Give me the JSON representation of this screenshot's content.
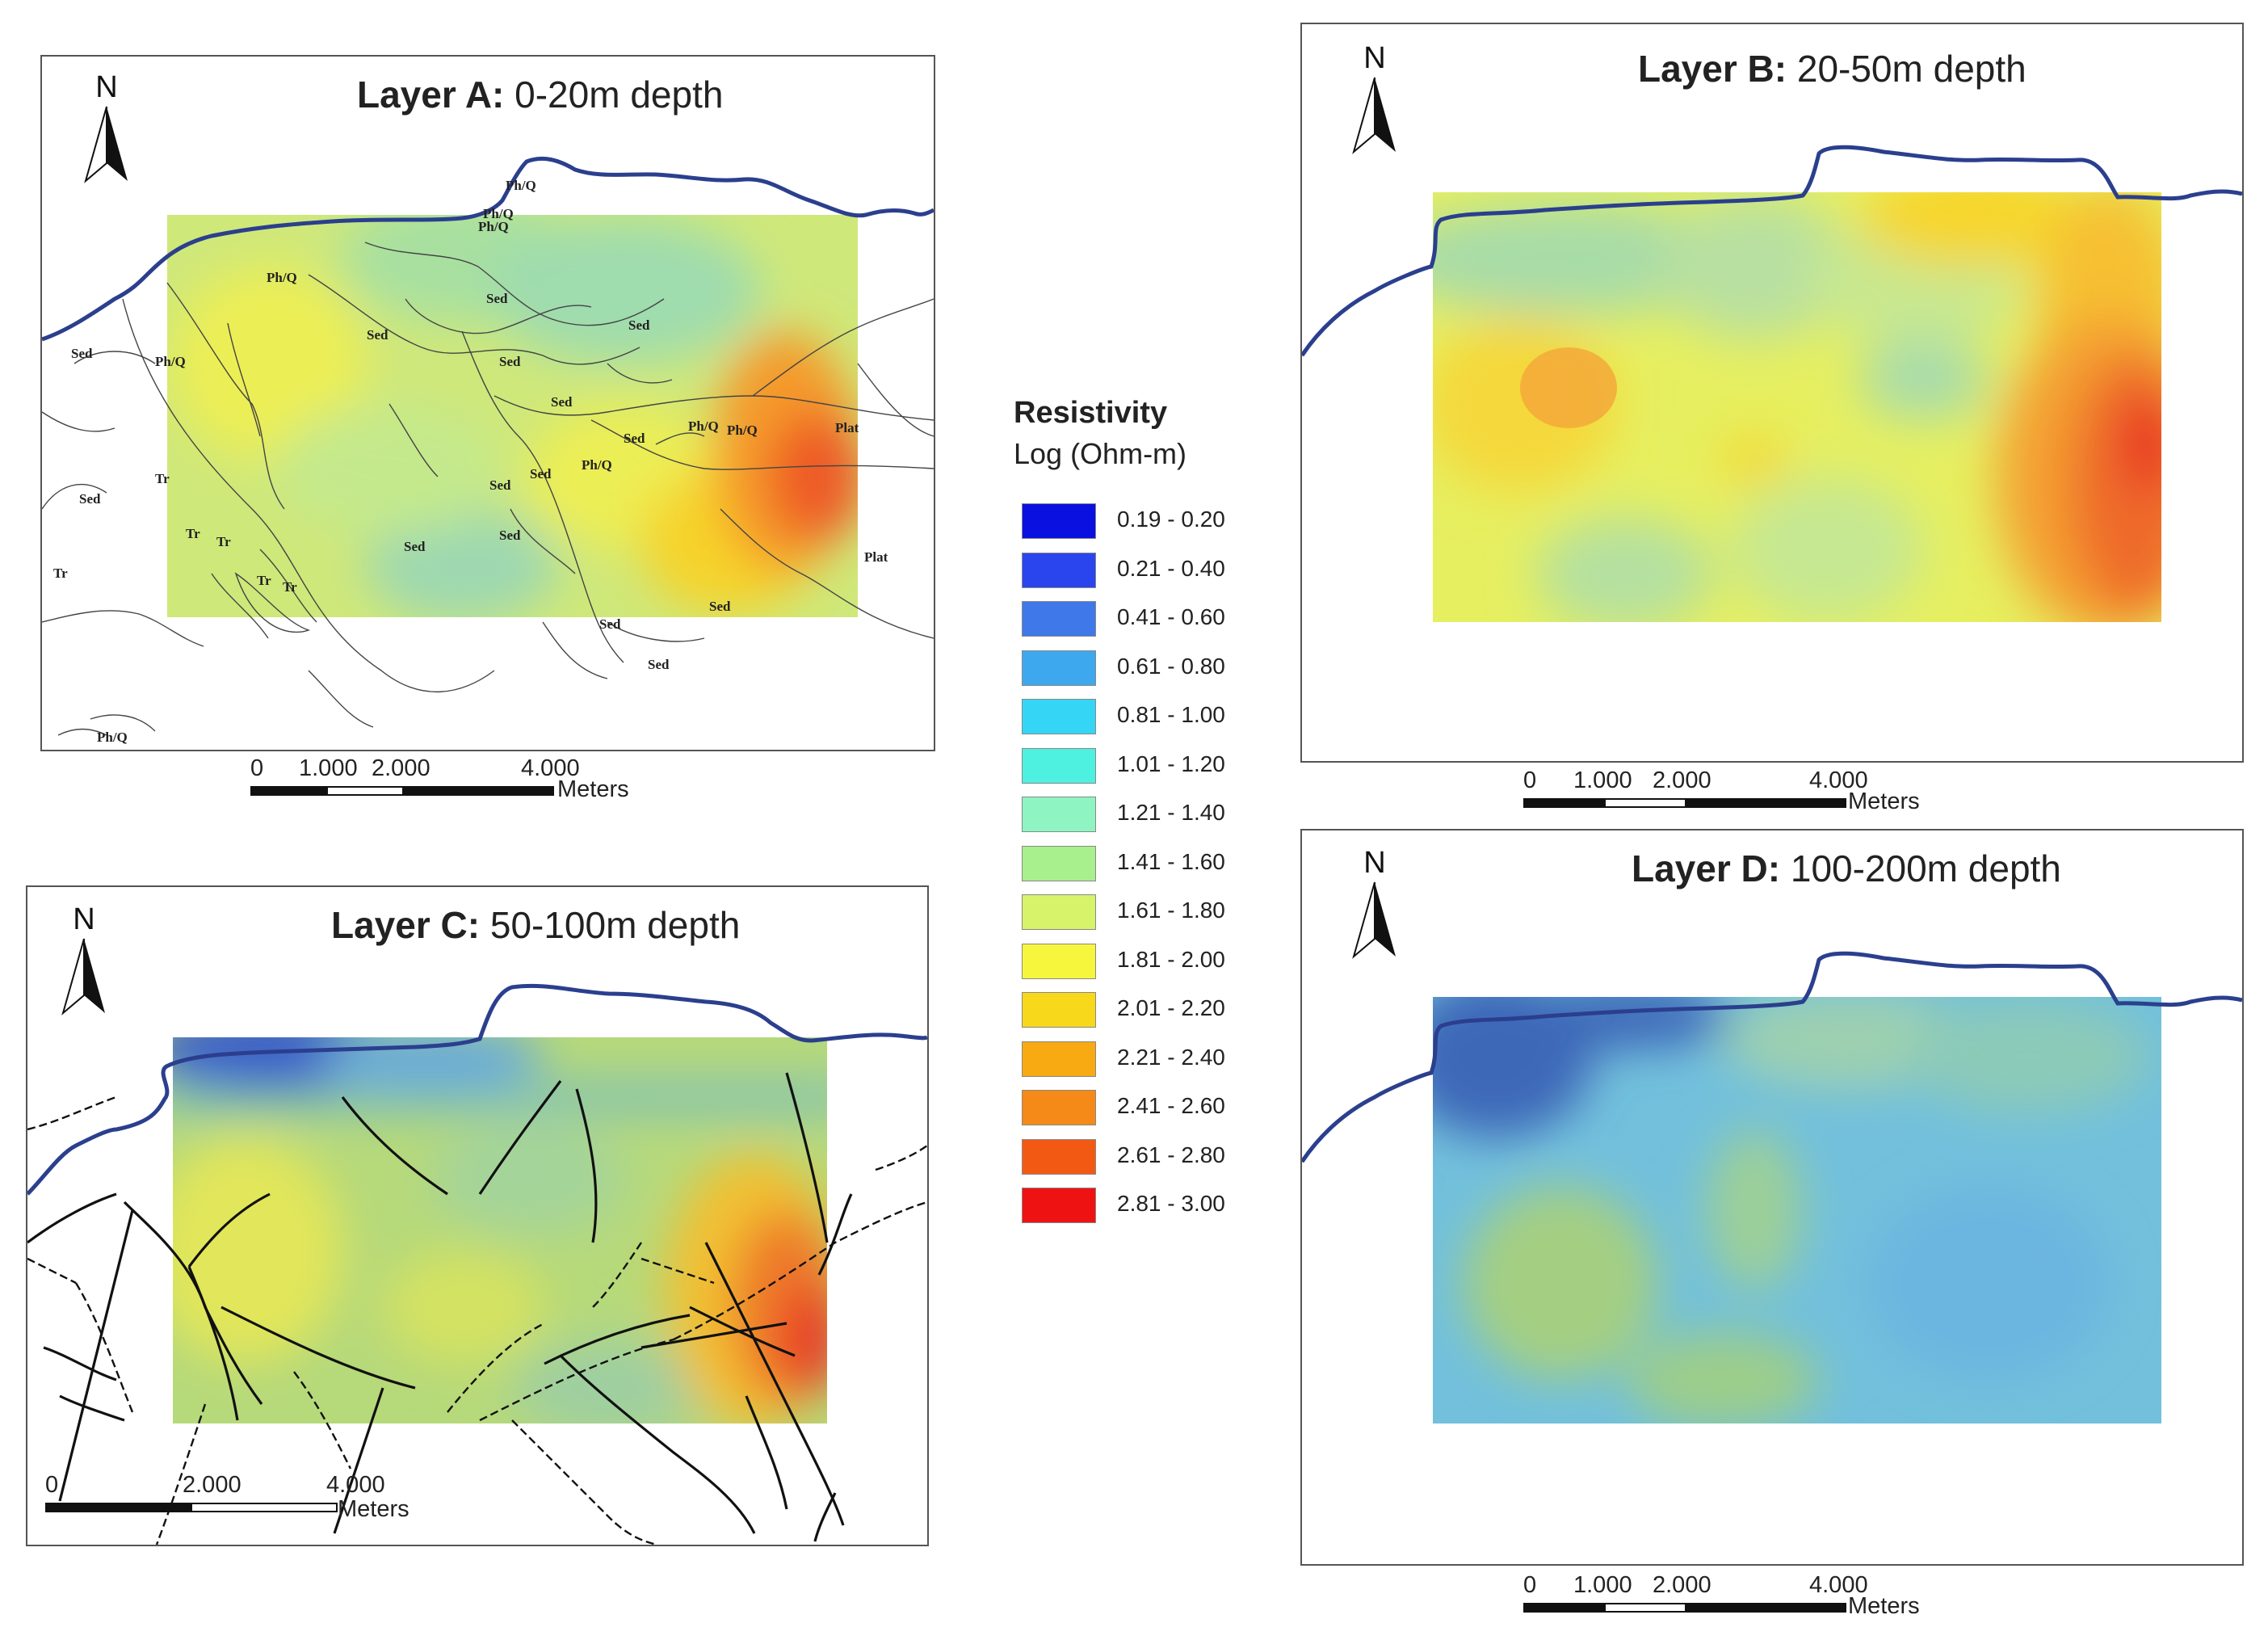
{
  "panels": {
    "a": {
      "title_bold": "Layer A:",
      "title_rest": " 0-20m depth",
      "north": "N",
      "scale": {
        "t0": "0",
        "t1": "1.000",
        "t2": "2.000",
        "t3": "4.000",
        "unit": "Meters"
      }
    },
    "b": {
      "title_bold": "Layer B:",
      "title_rest": " 20-50m depth",
      "north": "N",
      "scale": {
        "t0": "0",
        "t1": "1.000",
        "t2": "2.000",
        "t3": "4.000",
        "unit": "Meters"
      }
    },
    "c": {
      "title_bold": "Layer C:",
      "title_rest": " 50-100m depth",
      "north": "N",
      "scale": {
        "t0": "0",
        "t2": "2.000",
        "t3": "4.000",
        "unit": "Meters"
      }
    },
    "d": {
      "title_bold": "Layer D:",
      "title_rest": " 100-200m depth",
      "north": "N",
      "scale": {
        "t0": "0",
        "t1": "1.000",
        "t2": "2.000",
        "t3": "4.000",
        "unit": "Meters"
      }
    }
  },
  "geology_labels": {
    "phq": "Ph/Q",
    "sed": "Sed",
    "tr": "Tr",
    "plat": "Plat"
  },
  "legend": {
    "title": "Resistivity",
    "subtitle": "Log (Ohm-m)",
    "items": [
      {
        "label": "0.19 - 0.20",
        "color": "#0a10e0"
      },
      {
        "label": "0.21 - 0.40",
        "color": "#2a45ee"
      },
      {
        "label": "0.41 - 0.60",
        "color": "#3f78e8"
      },
      {
        "label": "0.61 - 0.80",
        "color": "#3ea8ee"
      },
      {
        "label": "0.81 - 1.00",
        "color": "#35d6f5"
      },
      {
        "label": "1.01 - 1.20",
        "color": "#4ef0e0"
      },
      {
        "label": "1.21 - 1.40",
        "color": "#8ef5c2"
      },
      {
        "label": "1.41 - 1.60",
        "color": "#a8f08e"
      },
      {
        "label": "1.61 - 1.80",
        "color": "#d6f36a"
      },
      {
        "label": "1.81 - 2.00",
        "color": "#f6f63c"
      },
      {
        "label": "2.01 - 2.20",
        "color": "#f8d81a"
      },
      {
        "label": "2.21 - 2.40",
        "color": "#f8aa12"
      },
      {
        "label": "2.41 - 2.60",
        "color": "#f58a18"
      },
      {
        "label": "2.61 - 2.80",
        "color": "#f25a14"
      },
      {
        "label": "2.81 - 3.00",
        "color": "#ee1212"
      }
    ]
  },
  "colors": {
    "coast": "#2b3f8e",
    "frame": "#555555"
  }
}
